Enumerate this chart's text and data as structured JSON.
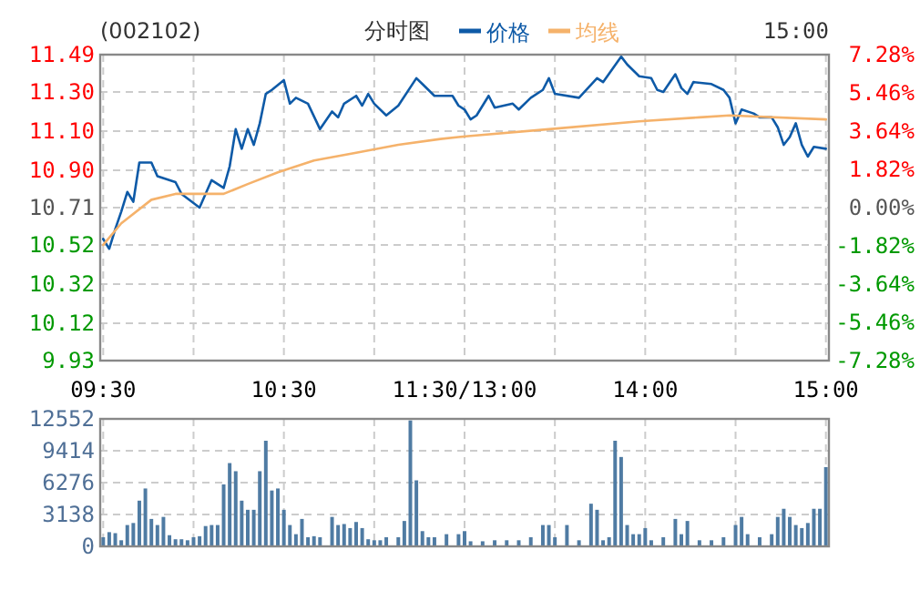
{
  "chart_data": [
    {
      "type": "line",
      "title": "(002102)",
      "subtitle": "分时图",
      "annotations": [
        "15:00"
      ],
      "legend": "top",
      "grid": true,
      "line_style": "solid",
      "categories": [
        "09:30",
        null,
        null,
        null,
        null,
        null,
        null,
        null,
        null,
        null,
        null,
        null,
        null,
        null,
        null,
        null,
        null,
        null,
        null,
        null,
        null,
        null,
        null,
        null,
        null,
        null,
        null,
        null,
        null,
        null,
        "10:30",
        null,
        null,
        null,
        null,
        null,
        null,
        null,
        null,
        null,
        null,
        null,
        null,
        null,
        null,
        null,
        null,
        null,
        null,
        null,
        null,
        null,
        null,
        null,
        null,
        null,
        null,
        null,
        null,
        null,
        "11:30/13:00",
        null,
        null,
        null,
        null,
        null,
        null,
        null,
        null,
        null,
        null,
        null,
        null,
        null,
        null,
        null,
        null,
        null,
        null,
        null,
        null,
        null,
        null,
        null,
        null,
        null,
        null,
        null,
        null,
        null,
        "14:00",
        null,
        null,
        null,
        null,
        null,
        null,
        null,
        null,
        null,
        null,
        null,
        null,
        null,
        null,
        null,
        null,
        null,
        null,
        null,
        null,
        null,
        null,
        null,
        null,
        null,
        null,
        null,
        null,
        null,
        "15:00"
      ],
      "ylim": [
        9.93,
        11.49
      ],
      "yticks": [
        {
          "value": 9.93,
          "label": "9.93"
        },
        {
          "value": 10.12,
          "label": "10.12"
        },
        {
          "value": 10.32,
          "label": "10.32"
        },
        {
          "value": 10.52,
          "label": "10.52"
        },
        {
          "value": 10.71,
          "label": "10.71"
        },
        {
          "value": 10.9,
          "label": "10.90"
        },
        {
          "value": 11.1,
          "label": "11.10"
        },
        {
          "value": 11.3,
          "label": "11.30"
        },
        {
          "value": 11.49,
          "label": "11.49"
        }
      ],
      "y2lim": [
        -7.28,
        7.28
      ],
      "y2ticks": [
        {
          "value": -7.28,
          "label": "-7.28%"
        },
        {
          "value": -5.46,
          "label": "-5.46%"
        },
        {
          "value": -3.64,
          "label": "-3.64%"
        },
        {
          "value": -1.82,
          "label": "-1.82%"
        },
        {
          "value": 0,
          "label": "0.00%"
        },
        {
          "value": 1.82,
          "label": "1.82%"
        },
        {
          "value": 3.64,
          "label": "3.64%"
        },
        {
          "value": 5.46,
          "label": "5.46%"
        },
        {
          "value": 7.28,
          "label": "7.28%"
        }
      ],
      "series": [
        {
          "name": "价格",
          "color": "#0e5aa7",
          "values": [
            10.55,
            10.5,
            10.6,
            10.69,
            10.79,
            10.74,
            10.94,
            null,
            10.94,
            10.87,
            null,
            null,
            10.84,
            10.78,
            null,
            null,
            10.71,
            null,
            10.85,
            null,
            10.81,
            10.92,
            11.11,
            11.01,
            11.11,
            11.03,
            11.14,
            11.29,
            11.31,
            null,
            11.36,
            11.24,
            11.27,
            null,
            11.24,
            null,
            11.11,
            null,
            11.2,
            11.17,
            11.24,
            null,
            11.28,
            11.23,
            11.29,
            11.24,
            null,
            11.18,
            null,
            11.23,
            null,
            null,
            11.37,
            11.34,
            null,
            11.28,
            null,
            null,
            11.28,
            11.23,
            11.21,
            11.16,
            11.18,
            null,
            11.28,
            11.22,
            null,
            null,
            11.24,
            11.21,
            null,
            11.27,
            null,
            11.31,
            11.37,
            11.29,
            null,
            null,
            null,
            11.27,
            null,
            null,
            11.37,
            11.35,
            null,
            null,
            11.48,
            11.44,
            null,
            11.38,
            null,
            11.37,
            11.31,
            11.3,
            null,
            11.39,
            11.32,
            11.29,
            11.35,
            null,
            null,
            11.34,
            null,
            11.31,
            11.27,
            11.14,
            11.21,
            null,
            11.19,
            11.17,
            null,
            11.17,
            11.12,
            11.03,
            11.07,
            11.14,
            11.03,
            10.97,
            11.02,
            null,
            11.01
          ]
        },
        {
          "name": "均线",
          "color": "#f5b26b",
          "values": [
            10.52,
            null,
            null,
            10.63,
            null,
            null,
            null,
            null,
            10.75,
            null,
            null,
            null,
            10.78,
            null,
            null,
            null,
            null,
            null,
            null,
            null,
            10.78,
            null,
            null,
            null,
            10.83,
            null,
            null,
            null,
            null,
            10.89,
            null,
            null,
            null,
            null,
            null,
            10.95,
            null,
            null,
            null,
            null,
            null,
            null,
            10.99,
            null,
            null,
            null,
            null,
            null,
            null,
            11.03,
            null,
            null,
            null,
            null,
            null,
            null,
            11.06,
            null,
            null,
            11.07,
            null,
            null,
            null,
            null,
            null,
            null,
            null,
            null,
            null,
            null,
            null,
            null,
            null,
            null,
            11.11,
            null,
            null,
            null,
            null,
            null,
            null,
            null,
            null,
            null,
            null,
            null,
            null,
            null,
            null,
            11.15,
            null,
            null,
            null,
            null,
            null,
            null,
            null,
            null,
            null,
            11.17,
            null,
            null,
            null,
            null,
            11.18,
            null,
            null,
            null,
            null,
            null,
            null,
            null,
            null,
            null,
            null,
            null,
            null,
            null,
            null,
            null,
            11.16
          ]
        }
      ]
    },
    {
      "type": "bar",
      "grid": true,
      "tick_labels": "y",
      "color": "#4f7ba3",
      "categories": [
        null,
        null,
        null,
        null,
        null,
        null,
        null,
        null,
        null,
        null,
        null,
        null,
        null,
        null,
        null,
        null,
        null,
        null,
        null,
        null,
        null,
        null,
        null,
        null,
        null,
        null,
        null,
        null,
        null,
        null,
        null,
        null,
        null,
        null,
        null,
        null,
        null,
        null,
        null,
        null,
        null,
        null,
        null,
        null,
        null,
        null,
        null,
        null,
        null,
        null,
        null,
        null,
        null,
        null,
        null,
        null,
        null,
        null,
        null,
        null,
        null,
        null,
        null,
        null,
        null,
        null,
        null,
        null,
        null,
        null,
        null,
        null,
        null,
        null,
        null,
        null,
        null,
        null,
        null,
        null,
        null,
        null,
        null,
        null,
        null,
        null,
        null,
        null,
        null,
        null,
        null,
        null,
        null,
        null,
        null,
        null,
        null,
        null,
        null,
        null,
        null,
        null,
        null,
        null,
        null,
        null,
        null,
        null,
        null,
        null,
        null,
        null,
        null,
        null,
        null,
        null,
        null,
        null,
        null,
        null,
        null
      ],
      "ylim": [
        0,
        12552
      ],
      "yticks": [
        0,
        3138,
        6276,
        9414,
        12552
      ],
      "values": [
        900,
        1400,
        1300,
        600,
        2100,
        2300,
        4500,
        5700,
        2700,
        2100,
        2900,
        1100,
        700,
        700,
        600,
        900,
        1000,
        2000,
        2100,
        2100,
        6100,
        8200,
        7400,
        4500,
        3600,
        3600,
        7400,
        10400,
        5500,
        5700,
        3600,
        2100,
        1200,
        2700,
        900,
        1000,
        900,
        null,
        2900,
        2100,
        2200,
        1800,
        2400,
        1800,
        700,
        600,
        600,
        900,
        null,
        900,
        2500,
        12400,
        6500,
        1500,
        900,
        900,
        null,
        1200,
        null,
        1200,
        1500,
        500,
        null,
        500,
        null,
        600,
        null,
        600,
        null,
        600,
        null,
        900,
        null,
        2100,
        2100,
        900,
        null,
        2100,
        null,
        600,
        null,
        4200,
        3600,
        600,
        900,
        10400,
        8800,
        2100,
        1200,
        1200,
        1800,
        600,
        null,
        900,
        null,
        2700,
        1200,
        2500,
        null,
        600,
        null,
        600,
        null,
        900,
        null,
        2100,
        2900,
        1200,
        null,
        900,
        null,
        1200,
        2900,
        3700,
        2900,
        2100,
        1800,
        2300,
        3700,
        3700,
        7800
      ]
    }
  ]
}
